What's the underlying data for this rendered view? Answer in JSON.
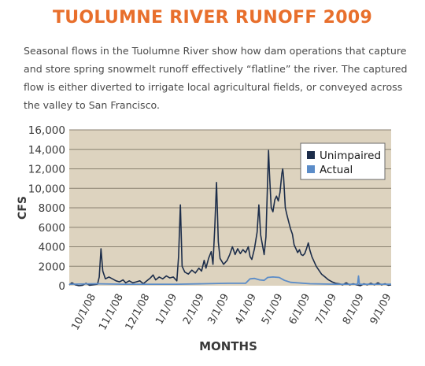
{
  "header": {
    "title": "TUOLUMNE RIVER RUNOFF 2009",
    "description": "Seasonal flows in the Tuolumne River show how dam operations that capture and store spring snowmelt runoff effectively “flatline” the river. The captured flow is either diverted to irrigate local agricultural fields, or conveyed across the valley to San Francisco."
  },
  "colors": {
    "title": "#E86F2C",
    "description": "#4A4A4A",
    "plot_background": "#DDD3BF",
    "gridline": "#8A8270",
    "axis_text": "#3A3A3A",
    "unimpaired": "#1C2D4A",
    "actual": "#5B8CC8"
  },
  "chart_data": {
    "type": "line",
    "title": "",
    "xlabel": "MONTHS",
    "ylabel": "CFS",
    "ylim": [
      0,
      16000
    ],
    "yticks": [
      0,
      2000,
      4000,
      6000,
      8000,
      10000,
      12000,
      14000,
      16000
    ],
    "ytick_labels": [
      "0",
      "2000",
      "4000",
      "6000",
      "8000",
      "10,000",
      "12,000",
      "14,000",
      "16,000"
    ],
    "xlim": [
      "2008-09-01",
      "2009-09-01"
    ],
    "xticks": [
      "2008-10-01",
      "2008-11-01",
      "2008-12-01",
      "2009-01-01",
      "2009-02-01",
      "2009-03-01",
      "2009-04-01",
      "2009-05-01",
      "2009-06-01",
      "2009-07-01",
      "2009-08-01",
      "2009-09-01"
    ],
    "xtick_labels": [
      "10/1/08",
      "11/1/08",
      "12/1/08",
      "1/1/09",
      "2/1/09",
      "3/1/09",
      "4/1/09",
      "5/1/09",
      "6/1/09",
      "7/1/09",
      "8/1/09",
      "9/1/09"
    ],
    "grid": true,
    "legend_position": "top-right",
    "series": [
      {
        "name": "Unimpaired",
        "color_key": "unimpaired",
        "points": [
          [
            "2008-09-01",
            100
          ],
          [
            "2008-09-04",
            300
          ],
          [
            "2008-09-08",
            100
          ],
          [
            "2008-09-12",
            0
          ],
          [
            "2008-09-16",
            50
          ],
          [
            "2008-09-20",
            250
          ],
          [
            "2008-09-24",
            50
          ],
          [
            "2008-09-28",
            100
          ],
          [
            "2008-10-03",
            150
          ],
          [
            "2008-10-05",
            900
          ],
          [
            "2008-10-07",
            3800
          ],
          [
            "2008-10-09",
            1500
          ],
          [
            "2008-10-12",
            700
          ],
          [
            "2008-10-16",
            900
          ],
          [
            "2008-10-20",
            700
          ],
          [
            "2008-10-24",
            500
          ],
          [
            "2008-10-28",
            400
          ],
          [
            "2008-11-01",
            600
          ],
          [
            "2008-11-04",
            300
          ],
          [
            "2008-11-08",
            500
          ],
          [
            "2008-11-12",
            300
          ],
          [
            "2008-11-16",
            400
          ],
          [
            "2008-11-20",
            500
          ],
          [
            "2008-11-24",
            200
          ],
          [
            "2008-11-28",
            500
          ],
          [
            "2008-12-02",
            800
          ],
          [
            "2008-12-05",
            1100
          ],
          [
            "2008-12-08",
            600
          ],
          [
            "2008-12-12",
            900
          ],
          [
            "2008-12-16",
            700
          ],
          [
            "2008-12-20",
            1000
          ],
          [
            "2008-12-24",
            800
          ],
          [
            "2008-12-28",
            900
          ],
          [
            "2009-01-01",
            500
          ],
          [
            "2009-01-03",
            3000
          ],
          [
            "2009-01-05",
            8300
          ],
          [
            "2009-01-07",
            2000
          ],
          [
            "2009-01-10",
            1400
          ],
          [
            "2009-01-14",
            1200
          ],
          [
            "2009-01-18",
            1600
          ],
          [
            "2009-01-22",
            1300
          ],
          [
            "2009-01-26",
            1800
          ],
          [
            "2009-01-29",
            1500
          ],
          [
            "2009-02-01",
            2600
          ],
          [
            "2009-02-03",
            1800
          ],
          [
            "2009-02-06",
            2800
          ],
          [
            "2009-02-09",
            3500
          ],
          [
            "2009-02-11",
            2200
          ],
          [
            "2009-02-13",
            6000
          ],
          [
            "2009-02-15",
            10600
          ],
          [
            "2009-02-17",
            4500
          ],
          [
            "2009-02-19",
            2800
          ],
          [
            "2009-02-23",
            2200
          ],
          [
            "2009-02-27",
            2600
          ],
          [
            "2009-03-02",
            3200
          ],
          [
            "2009-03-05",
            4000
          ],
          [
            "2009-03-08",
            3200
          ],
          [
            "2009-03-11",
            3800
          ],
          [
            "2009-03-14",
            3300
          ],
          [
            "2009-03-17",
            3700
          ],
          [
            "2009-03-20",
            3400
          ],
          [
            "2009-03-23",
            4000
          ],
          [
            "2009-03-25",
            3000
          ],
          [
            "2009-03-27",
            2700
          ],
          [
            "2009-03-30",
            3800
          ],
          [
            "2009-04-02",
            5500
          ],
          [
            "2009-04-04",
            8300
          ],
          [
            "2009-04-06",
            5200
          ],
          [
            "2009-04-08",
            4200
          ],
          [
            "2009-04-10",
            3200
          ],
          [
            "2009-04-12",
            5000
          ],
          [
            "2009-04-14",
            11000
          ],
          [
            "2009-04-15",
            13900
          ],
          [
            "2009-04-16",
            11500
          ],
          [
            "2009-04-18",
            8000
          ],
          [
            "2009-04-20",
            7600
          ],
          [
            "2009-04-22",
            8800
          ],
          [
            "2009-04-24",
            9200
          ],
          [
            "2009-04-26",
            8700
          ],
          [
            "2009-04-28",
            9600
          ],
          [
            "2009-04-30",
            11500
          ],
          [
            "2009-05-01",
            12000
          ],
          [
            "2009-05-02",
            11200
          ],
          [
            "2009-05-04",
            8000
          ],
          [
            "2009-05-06",
            7200
          ],
          [
            "2009-05-08",
            6500
          ],
          [
            "2009-05-10",
            5800
          ],
          [
            "2009-05-12",
            5300
          ],
          [
            "2009-05-14",
            4200
          ],
          [
            "2009-05-16",
            3800
          ],
          [
            "2009-05-18",
            3400
          ],
          [
            "2009-05-20",
            3700
          ],
          [
            "2009-05-22",
            3200
          ],
          [
            "2009-05-24",
            3100
          ],
          [
            "2009-05-26",
            3300
          ],
          [
            "2009-05-28",
            3800
          ],
          [
            "2009-05-30",
            4400
          ],
          [
            "2009-06-01",
            3600
          ],
          [
            "2009-06-03",
            3000
          ],
          [
            "2009-06-05",
            2600
          ],
          [
            "2009-06-08",
            2000
          ],
          [
            "2009-06-11",
            1600
          ],
          [
            "2009-06-14",
            1200
          ],
          [
            "2009-06-18",
            900
          ],
          [
            "2009-06-22",
            600
          ],
          [
            "2009-06-26",
            400
          ],
          [
            "2009-06-30",
            250
          ],
          [
            "2009-07-04",
            200
          ],
          [
            "2009-07-08",
            100
          ],
          [
            "2009-07-12",
            300
          ],
          [
            "2009-07-16",
            100
          ],
          [
            "2009-07-20",
            200
          ],
          [
            "2009-07-24",
            100
          ],
          [
            "2009-07-28",
            0
          ],
          [
            "2009-08-01",
            200
          ],
          [
            "2009-08-05",
            100
          ],
          [
            "2009-08-09",
            250
          ],
          [
            "2009-08-13",
            100
          ],
          [
            "2009-08-17",
            300
          ],
          [
            "2009-08-21",
            100
          ],
          [
            "2009-08-25",
            200
          ],
          [
            "2009-08-29",
            50
          ],
          [
            "2009-09-01",
            100
          ]
        ]
      },
      {
        "name": "Actual",
        "color_key": "actual",
        "points": [
          [
            "2008-09-01",
            150
          ],
          [
            "2008-10-01",
            200
          ],
          [
            "2008-11-01",
            150
          ],
          [
            "2008-12-01",
            150
          ],
          [
            "2009-01-01",
            150
          ],
          [
            "2009-02-01",
            200
          ],
          [
            "2009-03-01",
            250
          ],
          [
            "2009-03-20",
            250
          ],
          [
            "2009-03-25",
            700
          ],
          [
            "2009-03-30",
            750
          ],
          [
            "2009-04-05",
            600
          ],
          [
            "2009-04-10",
            550
          ],
          [
            "2009-04-14",
            850
          ],
          [
            "2009-04-20",
            900
          ],
          [
            "2009-04-27",
            850
          ],
          [
            "2009-05-03",
            550
          ],
          [
            "2009-05-10",
            350
          ],
          [
            "2009-06-01",
            200
          ],
          [
            "2009-07-01",
            150
          ],
          [
            "2009-07-25",
            150
          ],
          [
            "2009-07-26",
            1000
          ],
          [
            "2009-07-27",
            150
          ],
          [
            "2009-08-15",
            150
          ],
          [
            "2009-09-01",
            150
          ]
        ]
      }
    ]
  }
}
